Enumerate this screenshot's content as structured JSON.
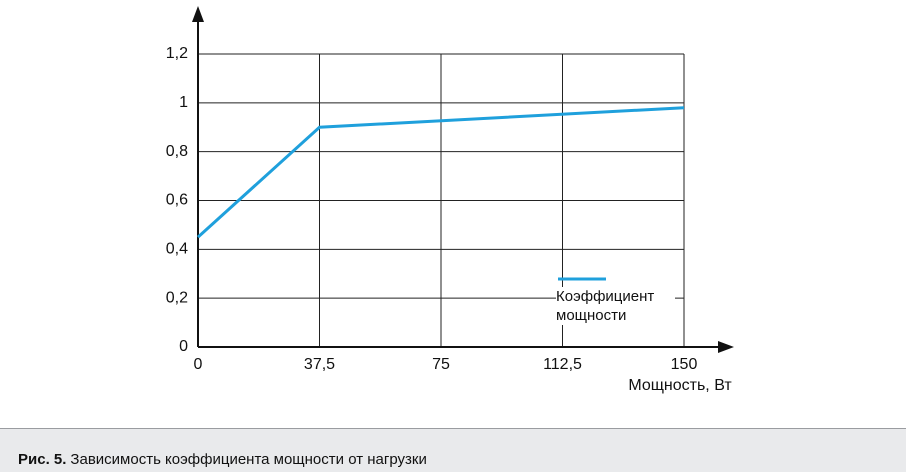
{
  "chart_data": {
    "type": "line",
    "x_label": "Мощность, Вт",
    "x": [
      0,
      37.5,
      150
    ],
    "series": [
      {
        "name": "Коэффициент мощности",
        "color": "#1fa0dc",
        "values": [
          0.45,
          0.9,
          0.98
        ]
      }
    ],
    "xlim": [
      0,
      150
    ],
    "xticks": [
      0,
      {
        "value": 37.5,
        "label": "37,5"
      },
      75,
      {
        "value": 112.5,
        "label": "112,5"
      },
      150
    ],
    "ylim": [
      0,
      1.2
    ],
    "yticks": [
      0,
      {
        "value": 0.2,
        "label": "0,2"
      },
      {
        "value": 0.4,
        "label": "0,4"
      },
      {
        "value": 0.6,
        "label": "0,6"
      },
      {
        "value": 0.8,
        "label": "0,8"
      },
      1,
      {
        "value": 1.2,
        "label": "1,2"
      }
    ],
    "grid": true
  },
  "figure_caption": {
    "number": "Рис. 5.",
    "text": "Зависимость коэффициента мощности от нагрузки"
  }
}
